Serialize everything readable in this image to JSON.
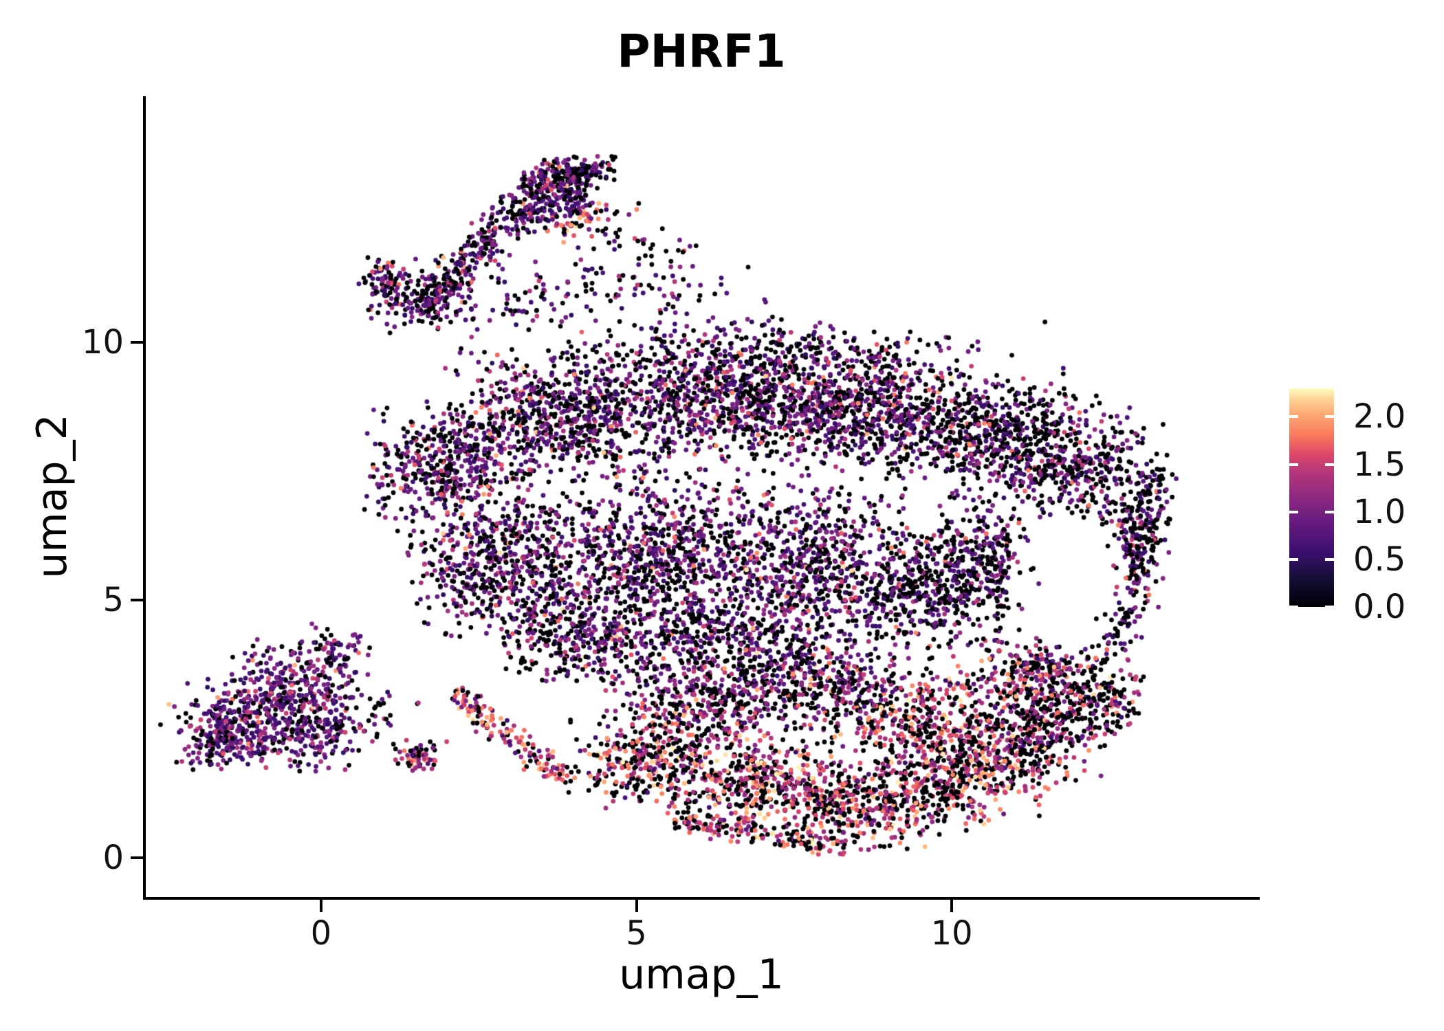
{
  "figure": {
    "background": "#ffffff"
  },
  "chart_data": {
    "type": "scatter",
    "subtype": "umap-feature-plot",
    "title": "PHRF1",
    "xlabel": "umap_1",
    "ylabel": "umap_2",
    "grid": false,
    "background": "#ffffff",
    "axis_color": "#000000",
    "text_color": "#111111",
    "x_domain": [
      -2.8,
      14.86
    ],
    "y_domain": [
      -0.76,
      14.77
    ],
    "x_ticks": [
      {
        "value": 0,
        "label": "0"
      },
      {
        "value": 5,
        "label": "5"
      },
      {
        "value": 10,
        "label": "10"
      }
    ],
    "y_ticks": [
      {
        "value": 0,
        "label": "0"
      },
      {
        "value": 5,
        "label": "5"
      },
      {
        "value": 10,
        "label": "10"
      }
    ],
    "point_radius_px": 3.4,
    "n_points_approx": 13000,
    "seed": 1337,
    "colorbar": {
      "position": "right",
      "domain": [
        0,
        2.3
      ],
      "ticks": [
        {
          "value": 2.0,
          "label": "2.0"
        },
        {
          "value": 1.5,
          "label": "1.5"
        },
        {
          "value": 1.0,
          "label": "1.0"
        },
        {
          "value": 0.5,
          "label": "0.5"
        },
        {
          "value": 0.0,
          "label": "0.0"
        }
      ],
      "colormap": "magma",
      "tick_mark_color": "#ffffff",
      "stops": [
        [
          0.0,
          "#000004"
        ],
        [
          0.13,
          "#140E36"
        ],
        [
          0.25,
          "#3B0F70"
        ],
        [
          0.38,
          "#641A80"
        ],
        [
          0.5,
          "#8C2981"
        ],
        [
          0.62,
          "#B73779"
        ],
        [
          0.7,
          "#DE4968"
        ],
        [
          0.78,
          "#F8765C"
        ],
        [
          0.88,
          "#FEA873"
        ],
        [
          0.95,
          "#FED395"
        ],
        [
          1.0,
          "#FCFDBF"
        ]
      ]
    },
    "hole": {
      "cx": 11.85,
      "cy": 5.35,
      "rx": 1.0,
      "ry": 1.25,
      "keep_prob": 0.15
    },
    "expression_profiles": {
      "purpleHeavy": [
        [
          0.27,
          0,
          0
        ],
        [
          0.52,
          0.45,
          1.1
        ],
        [
          0.15,
          1.1,
          1.5
        ],
        [
          0.05,
          1.5,
          1.9
        ],
        [
          0.01,
          1.9,
          2.25
        ]
      ],
      "bodyMix": [
        [
          0.42,
          0,
          0
        ],
        [
          0.42,
          0.45,
          1.1
        ],
        [
          0.11,
          1.1,
          1.5
        ],
        [
          0.04,
          1.5,
          1.9
        ],
        [
          0.01,
          1.9,
          2.25
        ]
      ],
      "bodyDark": [
        [
          0.55,
          0,
          0
        ],
        [
          0.34,
          0.45,
          1.1
        ],
        [
          0.08,
          1.1,
          1.5
        ],
        [
          0.03,
          1.5,
          1.9
        ]
      ],
      "armMix": [
        [
          0.39,
          0,
          0
        ],
        [
          0.47,
          0.45,
          1.1
        ],
        [
          0.09,
          1.1,
          1.5
        ],
        [
          0.05,
          1.5,
          2.1
        ]
      ],
      "warmMix": [
        [
          0.15,
          0,
          0
        ],
        [
          0.25,
          0.6,
          1.2
        ],
        [
          0.25,
          1.3,
          1.7
        ],
        [
          0.25,
          1.7,
          2.1
        ],
        [
          0.1,
          2.1,
          2.3
        ]
      ],
      "warmBand": [
        [
          0.42,
          0,
          0
        ],
        [
          0.07,
          0.5,
          1.1
        ],
        [
          0.23,
          1.1,
          1.5
        ],
        [
          0.18,
          1.5,
          1.9
        ],
        [
          0.1,
          1.9,
          2.3
        ]
      ],
      "warmDark": [
        [
          0.5,
          0,
          0
        ],
        [
          0.15,
          0.5,
          1.1
        ],
        [
          0.2,
          1.1,
          1.5
        ],
        [
          0.11,
          1.5,
          1.9
        ],
        [
          0.04,
          1.9,
          2.25
        ]
      ],
      "bottomTrans": [
        [
          0.42,
          0,
          0
        ],
        [
          0.28,
          0.5,
          1.1
        ],
        [
          0.2,
          1.1,
          1.5
        ],
        [
          0.08,
          1.5,
          1.9
        ],
        [
          0.02,
          1.9,
          2.2
        ]
      ],
      "warmChain": [
        [
          0.3,
          0,
          0
        ],
        [
          0.15,
          0.6,
          1.2
        ],
        [
          0.25,
          1.2,
          1.6
        ],
        [
          0.2,
          1.6,
          2.0
        ],
        [
          0.1,
          2.0,
          2.3
        ]
      ],
      "chainMix": [
        [
          0.35,
          0,
          0
        ],
        [
          0.3,
          0.6,
          1.2
        ],
        [
          0.3,
          1.2,
          1.6
        ],
        [
          0.05,
          1.6,
          2.0
        ]
      ],
      "sparseMix": [
        [
          0.5,
          0,
          0
        ],
        [
          0.4,
          0.45,
          1.1
        ],
        [
          0.09,
          1.1,
          1.5
        ],
        [
          0.01,
          1.5,
          1.9
        ]
      ],
      "sparseBody": [
        [
          0.55,
          0,
          0
        ],
        [
          0.36,
          0.45,
          1.1
        ],
        [
          0.08,
          1.1,
          1.5
        ],
        [
          0.01,
          1.5,
          1.9
        ]
      ]
    },
    "clusters": [
      {
        "s": "e",
        "cx": -1.15,
        "cy": 2.55,
        "sx": 0.5,
        "sy": 0.33,
        "rot": -15,
        "n": 250,
        "p": "purpleHeavy",
        "name": "left-cluster-core-a"
      },
      {
        "s": "e",
        "cx": -0.45,
        "cy": 3.25,
        "sx": 0.52,
        "sy": 0.36,
        "rot": -15,
        "n": 250,
        "p": "purpleHeavy",
        "name": "left-cluster-core-b"
      },
      {
        "s": "e",
        "cx": -1.7,
        "cy": 2.25,
        "sx": 0.3,
        "sy": 0.26,
        "rot": 0,
        "n": 110,
        "p": "purpleHeavy",
        "name": "left-cluster-west"
      },
      {
        "s": "e",
        "cx": -0.05,
        "cy": 2.35,
        "sx": 0.33,
        "sy": 0.3,
        "rot": 0,
        "n": 110,
        "p": "purpleHeavy",
        "name": "left-cluster-east"
      },
      {
        "s": "e",
        "cx": -0.7,
        "cy": 2.9,
        "sx": 0.85,
        "sy": 0.6,
        "rot": -15,
        "n": 90,
        "p": "purpleHeavy",
        "name": "left-cluster-fringe"
      },
      {
        "s": "e",
        "cx": 0.2,
        "cy": 4.05,
        "sx": 0.28,
        "sy": 0.22,
        "rot": 0,
        "n": 70,
        "p": "purpleHeavy",
        "name": "left-cluster-tip"
      },
      {
        "s": "g",
        "x1": 1.55,
        "y1": 10.6,
        "x2": 3.3,
        "y2": 12.75,
        "sd": 0.2,
        "n": 300,
        "p": "armMix",
        "name": "arm-ridge"
      },
      {
        "s": "g",
        "x1": 3.3,
        "y1": 12.9,
        "x2": 4.15,
        "y2": 13.35,
        "sd": 0.2,
        "n": 220,
        "p": "armMix",
        "name": "arm-head"
      },
      {
        "s": "e",
        "cx": 4.35,
        "cy": 13.3,
        "sx": 0.22,
        "sy": 0.15,
        "rot": 30,
        "n": 60,
        "p": "armMix",
        "name": "arm-tip"
      },
      {
        "s": "e",
        "cx": 1.5,
        "cy": 10.8,
        "sx": 0.45,
        "sy": 0.3,
        "rot": 0,
        "n": 100,
        "p": "armMix",
        "name": "arm-base"
      },
      {
        "s": "e",
        "cx": 1.05,
        "cy": 11.25,
        "sx": 0.22,
        "sy": 0.2,
        "rot": 0,
        "n": 70,
        "p": "armMix",
        "name": "arm-side-clump"
      },
      {
        "s": "g",
        "x1": 3.2,
        "y1": 12.35,
        "x2": 4.2,
        "y2": 12.8,
        "sd": 0.15,
        "n": 90,
        "p": "armMix",
        "name": "arm-head-underside"
      },
      {
        "s": "e",
        "cx": 4.1,
        "cy": 12.32,
        "sx": 0.24,
        "sy": 0.15,
        "rot": 20,
        "n": 45,
        "p": "warmMix",
        "name": "arm-warm-spur"
      },
      {
        "s": "e",
        "cx": 3.3,
        "cy": 10.7,
        "sx": 0.75,
        "sy": 0.45,
        "rot": 0,
        "n": 80,
        "p": "sparseMix",
        "name": "below-arm-scatter-a"
      },
      {
        "s": "e",
        "cx": 4.9,
        "cy": 11.8,
        "sx": 0.5,
        "sy": 0.5,
        "rot": 0,
        "n": 55,
        "p": "sparseMix",
        "name": "below-arm-scatter-b"
      },
      {
        "s": "e",
        "cx": 5.6,
        "cy": 10.9,
        "sx": 0.7,
        "sy": 0.45,
        "rot": 0,
        "n": 55,
        "p": "sparseMix",
        "name": "below-arm-scatter-c"
      },
      {
        "s": "e",
        "cx": 2.05,
        "cy": 7.6,
        "sx": 0.62,
        "sy": 0.58,
        "rot": 0,
        "n": 480,
        "p": "bodyMix",
        "name": "body-upper-left-lobe"
      },
      {
        "s": "e",
        "cx": 3.9,
        "cy": 8.6,
        "sx": 0.83,
        "sy": 0.58,
        "rot": 0,
        "n": 640,
        "p": "bodyMix",
        "name": "body-upper-a"
      },
      {
        "s": "e",
        "cx": 6.3,
        "cy": 8.9,
        "sx": 0.9,
        "sy": 0.53,
        "rot": 0,
        "n": 680,
        "p": "bodyMix",
        "name": "body-upper-b"
      },
      {
        "s": "e",
        "cx": 8.6,
        "cy": 8.7,
        "sx": 0.9,
        "sy": 0.56,
        "rot": 0,
        "n": 680,
        "p": "bodyMix",
        "name": "body-upper-c"
      },
      {
        "s": "e",
        "cx": 10.6,
        "cy": 8.2,
        "sx": 0.78,
        "sy": 0.56,
        "rot": 0,
        "n": 540,
        "p": "bodyDark",
        "name": "body-upper-right"
      },
      {
        "s": "e",
        "cx": 7.0,
        "cy": 9.85,
        "sx": 1.55,
        "sy": 0.28,
        "rot": 0,
        "n": 260,
        "p": "bodyDark",
        "name": "body-top-fringe"
      },
      {
        "s": "e",
        "cx": 12.0,
        "cy": 7.6,
        "sx": 0.64,
        "sy": 0.53,
        "rot": 0,
        "n": 340,
        "p": "bodyDark",
        "name": "body-ne-shoulder"
      },
      {
        "s": "g",
        "x1": 13.2,
        "y1": 7.5,
        "x2": 12.55,
        "y2": 4.1,
        "sd": 0.2,
        "n": 270,
        "p": "bodyDark",
        "name": "right-rim"
      },
      {
        "s": "e",
        "cx": 10.6,
        "cy": 5.7,
        "sx": 0.5,
        "sy": 0.56,
        "rot": 0,
        "n": 230,
        "p": "bodyDark",
        "name": "hole-west-wall"
      },
      {
        "s": "e",
        "cx": 11.3,
        "cy": 3.5,
        "sx": 0.56,
        "sy": 0.45,
        "rot": 0,
        "n": 270,
        "p": "warmDark",
        "name": "right-lower-transition"
      },
      {
        "s": "e",
        "cx": 12.85,
        "cy": 6.0,
        "sx": 0.28,
        "sy": 0.56,
        "rot": 0,
        "n": 130,
        "p": "bodyDark",
        "name": "right-rim-inner"
      },
      {
        "s": "e",
        "cx": 12.35,
        "cy": 3.1,
        "sx": 0.4,
        "sy": 0.4,
        "rot": 0,
        "n": 160,
        "p": "warmDark",
        "name": "right-bottom-corner"
      },
      {
        "s": "e",
        "cx": 3.0,
        "cy": 5.6,
        "sx": 0.78,
        "sy": 0.67,
        "rot": 0,
        "n": 620,
        "p": "bodyMix",
        "name": "body-mid-a"
      },
      {
        "s": "e",
        "cx": 5.4,
        "cy": 5.9,
        "sx": 0.83,
        "sy": 0.67,
        "rot": 0,
        "n": 620,
        "p": "bodyMix",
        "name": "body-mid-b"
      },
      {
        "s": "e",
        "cx": 7.8,
        "cy": 5.6,
        "sx": 0.83,
        "sy": 0.72,
        "rot": 0,
        "n": 600,
        "p": "bodyMix",
        "name": "body-mid-c"
      },
      {
        "s": "e",
        "cx": 9.7,
        "cy": 5.2,
        "sx": 0.67,
        "sy": 0.61,
        "rot": 0,
        "n": 400,
        "p": "bodyDark",
        "name": "body-mid-right"
      },
      {
        "s": "e",
        "cx": 4.3,
        "cy": 4.25,
        "sx": 0.72,
        "sy": 0.45,
        "rot": 0,
        "n": 320,
        "p": "bodyMix",
        "name": "body-lower-mid-a"
      },
      {
        "s": "e",
        "cx": 6.5,
        "cy": 4.1,
        "sx": 0.83,
        "sy": 0.5,
        "rot": 0,
        "n": 380,
        "p": "bodyMix",
        "name": "body-lower-mid-b"
      },
      {
        "s": "g",
        "x1": 2.1,
        "y1": 3.2,
        "x2": 3.9,
        "y2": 1.45,
        "sd": 0.13,
        "n": 150,
        "p": "warmChain",
        "name": "sw-diagonal-chain"
      },
      {
        "s": "e",
        "cx": 1.55,
        "cy": 1.95,
        "sx": 0.2,
        "sy": 0.17,
        "rot": 0,
        "n": 55,
        "p": "chainMix",
        "name": "sw-detached-clump"
      },
      {
        "s": "e",
        "cx": 0.9,
        "cy": 2.7,
        "sx": 0.33,
        "sy": 0.28,
        "rot": 0,
        "n": 35,
        "p": "sparseMix",
        "name": "bridge-scatter"
      },
      {
        "s": "e",
        "cx": 5.3,
        "cy": 1.9,
        "sx": 0.61,
        "sy": 0.42,
        "rot": 0,
        "n": 340,
        "p": "warmBand",
        "name": "bottom-band-a"
      },
      {
        "s": "e",
        "cx": 7.0,
        "cy": 1.5,
        "sx": 0.67,
        "sy": 0.45,
        "rot": 0,
        "n": 400,
        "p": "warmBand",
        "name": "bottom-band-b"
      },
      {
        "s": "e",
        "cx": 8.7,
        "cy": 1.05,
        "sx": 0.67,
        "sy": 0.42,
        "rot": 0,
        "n": 400,
        "p": "warmBand",
        "name": "bottom-band-c"
      },
      {
        "s": "e",
        "cx": 10.2,
        "cy": 1.65,
        "sx": 0.61,
        "sy": 0.5,
        "rot": 0,
        "n": 380,
        "p": "warmBand",
        "name": "bottom-band-d"
      },
      {
        "s": "e",
        "cx": 11.4,
        "cy": 2.45,
        "sx": 0.5,
        "sy": 0.5,
        "rot": 0,
        "n": 300,
        "p": "warmDark",
        "name": "bottom-se-lobe"
      },
      {
        "s": "e",
        "cx": 9.5,
        "cy": 2.6,
        "sx": 0.72,
        "sy": 0.45,
        "rot": 0,
        "n": 340,
        "p": "warmBand",
        "name": "bottom-band-e"
      },
      {
        "s": "e",
        "cx": 6.1,
        "cy": 2.95,
        "sx": 0.72,
        "sy": 0.4,
        "rot": 0,
        "n": 300,
        "p": "bottomTrans",
        "name": "bottom-transition-a"
      },
      {
        "s": "e",
        "cx": 8.0,
        "cy": 3.35,
        "sx": 0.78,
        "sy": 0.45,
        "rot": 0,
        "n": 340,
        "p": "bottomTrans",
        "name": "bottom-transition-b"
      },
      {
        "s": "g",
        "x1": 5.6,
        "y1": 0.75,
        "x2": 8.3,
        "y2": 0.25,
        "sd": 0.14,
        "n": 170,
        "p": "warmBand",
        "name": "bottom-edge-fringe"
      },
      {
        "s": "e",
        "cx": 6.8,
        "cy": 6.6,
        "sx": 2.5,
        "sy": 1.8,
        "rot": 0,
        "n": 420,
        "p": "sparseBody",
        "name": "body-sparse-fill"
      }
    ]
  }
}
